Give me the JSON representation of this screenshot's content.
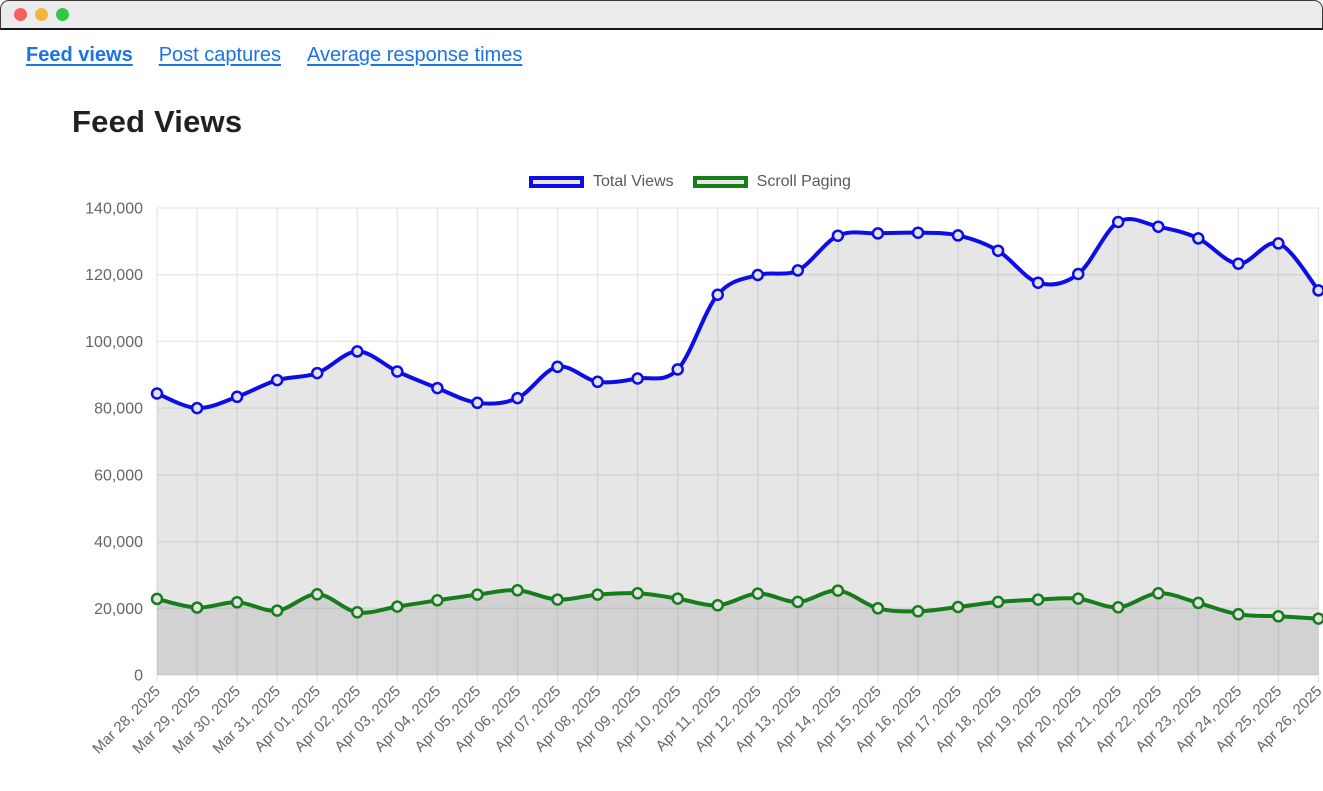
{
  "window": {
    "buttons": [
      "close",
      "minimize",
      "zoom"
    ]
  },
  "colors": {
    "link": "#1a73e8",
    "titlebar_bg": "#ececec",
    "traffic_red": "#f3625d",
    "traffic_yellow": "#f3b440",
    "traffic_green": "#33c748",
    "grid": "#e6e6e6",
    "axis_text": "#666666",
    "title_text": "#212121",
    "legend_text": "#58595b"
  },
  "nav": {
    "items": [
      {
        "label": "Feed views",
        "active": true
      },
      {
        "label": "Post captures",
        "active": false
      },
      {
        "label": "Average response times",
        "active": false
      }
    ]
  },
  "page": {
    "title": "Feed Views"
  },
  "chart_data": {
    "type": "line",
    "title": "Feed Views",
    "xlabel": "",
    "ylabel": "",
    "ylim": [
      0,
      140000
    ],
    "yticks": [
      0,
      20000,
      40000,
      60000,
      80000,
      100000,
      120000,
      140000
    ],
    "grid": true,
    "legend_position": "top",
    "fill_color": "rgba(128,128,128,0.2)",
    "point_fill": "#e3e3e3",
    "x": [
      "Mar 28, 2025",
      "Mar 29, 2025",
      "Mar 30, 2025",
      "Mar 31, 2025",
      "Apr 01, 2025",
      "Apr 02, 2025",
      "Apr 03, 2025",
      "Apr 04, 2025",
      "Apr 05, 2025",
      "Apr 06, 2025",
      "Apr 07, 2025",
      "Apr 08, 2025",
      "Apr 09, 2025",
      "Apr 10, 2025",
      "Apr 11, 2025",
      "Apr 12, 2025",
      "Apr 13, 2025",
      "Apr 14, 2025",
      "Apr 15, 2025",
      "Apr 16, 2025",
      "Apr 17, 2025",
      "Apr 18, 2025",
      "Apr 19, 2025",
      "Apr 20, 2025",
      "Apr 21, 2025",
      "Apr 22, 2025",
      "Apr 23, 2025",
      "Apr 24, 2025",
      "Apr 25, 2025",
      "Apr 26, 2025"
    ],
    "series": [
      {
        "name": "Total Views",
        "color": "#0d0de6",
        "values": [
          84400,
          80000,
          83400,
          88400,
          90500,
          97000,
          91000,
          86000,
          81600,
          83000,
          92400,
          87900,
          88900,
          91600,
          114000,
          119900,
          121300,
          131700,
          132400,
          132600,
          131800,
          127200,
          117600,
          120200,
          135800,
          134400,
          130900,
          123300,
          129400,
          115300
        ]
      },
      {
        "name": "Scroll Paging",
        "color": "#177d1b",
        "values": [
          22800,
          20200,
          21800,
          19300,
          24200,
          18800,
          20500,
          22400,
          24100,
          25400,
          22600,
          24100,
          24500,
          22900,
          20900,
          24400,
          21900,
          25300,
          20000,
          19100,
          20400,
          21900,
          22600,
          22900,
          20300,
          24500,
          21600,
          18200,
          17600,
          16900
        ]
      }
    ]
  }
}
